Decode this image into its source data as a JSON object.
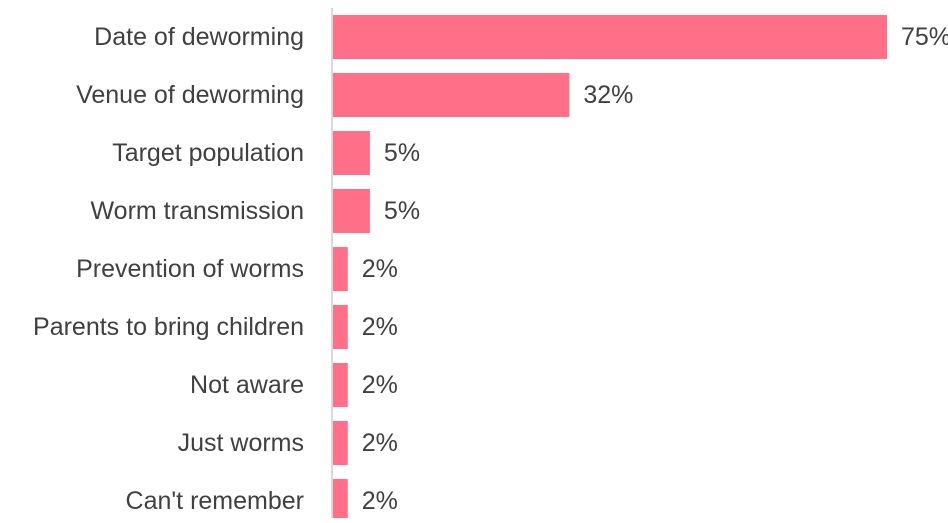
{
  "chart_data": {
    "type": "bar",
    "orientation": "horizontal",
    "categories": [
      "Date of deworming",
      "Venue of deworming",
      "Target population",
      "Worm transmission",
      "Prevention of worms",
      "Parents to bring children",
      "Not aware",
      "Just worms",
      "Can't remember"
    ],
    "values": [
      75,
      32,
      5,
      5,
      2,
      2,
      2,
      2,
      2
    ],
    "value_labels": [
      "75%",
      "32%",
      "5%",
      "5%",
      "2%",
      "2%",
      "2%",
      "2%",
      "2%"
    ],
    "unit": "%",
    "xlim": [
      0,
      75
    ],
    "bar_color": "#ff7088",
    "axis_color": "#d9d9d9",
    "text_color": "#404040",
    "grid": false,
    "legend": "none"
  }
}
